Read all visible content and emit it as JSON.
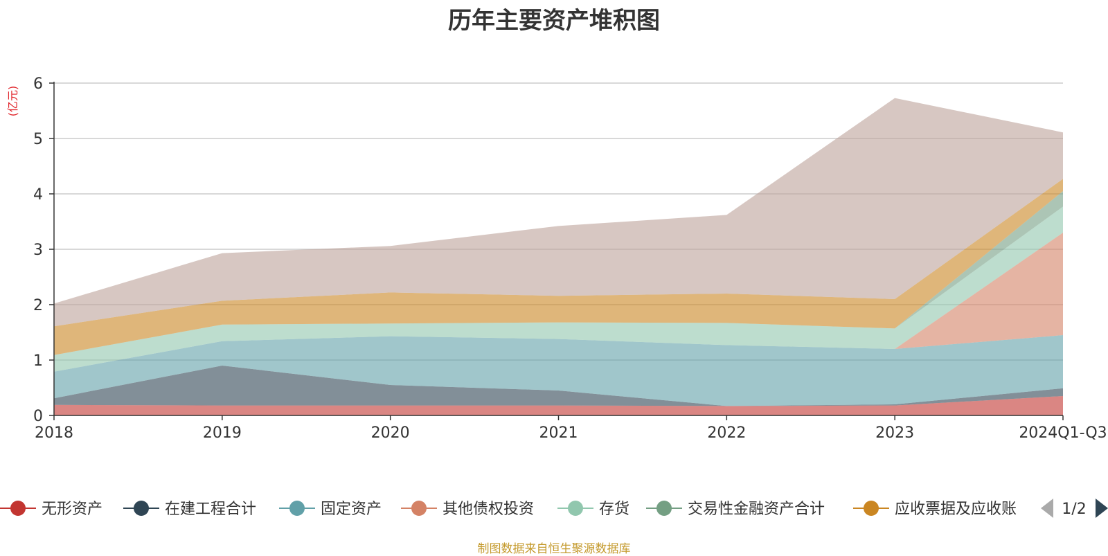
{
  "chart_data": {
    "type": "area",
    "stacked": true,
    "title": "历年主要资产堆积图",
    "ylabel": "(亿元)",
    "xlabel": "",
    "categories": [
      "2018",
      "2019",
      "2020",
      "2021",
      "2022",
      "2023",
      "2024Q1-Q3"
    ],
    "ylim": [
      0,
      6
    ],
    "yticks": [
      0,
      1,
      2,
      3,
      4,
      5,
      6
    ],
    "grid": true,
    "series": [
      {
        "name": "无形资产",
        "color": "#c23531",
        "values": [
          0.19,
          0.18,
          0.18,
          0.18,
          0.17,
          0.18,
          0.35
        ]
      },
      {
        "name": "在建工程合计",
        "color": "#2f4554",
        "values": [
          0.12,
          0.72,
          0.37,
          0.27,
          0.0,
          0.02,
          0.14
        ]
      },
      {
        "name": "固定资产",
        "color": "#61a0a8",
        "values": [
          0.48,
          0.44,
          0.88,
          0.93,
          1.1,
          1.0,
          0.96
        ]
      },
      {
        "name": "其他债权投资",
        "color": "#d48265",
        "values": [
          0.0,
          0.0,
          0.0,
          0.0,
          0.0,
          0.0,
          1.85
        ]
      },
      {
        "name": "存货",
        "color": "#91c7ae",
        "values": [
          0.3,
          0.3,
          0.23,
          0.3,
          0.4,
          0.37,
          0.47
        ]
      },
      {
        "name": "交易性金融资产合计",
        "color": "#749f83",
        "values": [
          0.0,
          0.0,
          0.0,
          0.0,
          0.0,
          0.0,
          0.28
        ]
      },
      {
        "name": "应收票据及应收账",
        "color": "#ca8622",
        "values": [
          0.52,
          0.43,
          0.56,
          0.48,
          0.53,
          0.53,
          0.22
        ]
      },
      {
        "name": "",
        "color": "#bda29a",
        "values": [
          0.41,
          0.86,
          0.84,
          1.26,
          1.42,
          3.63,
          0.84
        ]
      }
    ],
    "legend": {
      "position": "bottom",
      "page": "1/2",
      "visible_count": 7
    }
  },
  "source_note": "制图数据来自恒生聚源数据库",
  "legend_pager": {
    "page": "1/2",
    "prev_icon": "triangle-left-icon",
    "next_icon": "triangle-right-icon"
  }
}
